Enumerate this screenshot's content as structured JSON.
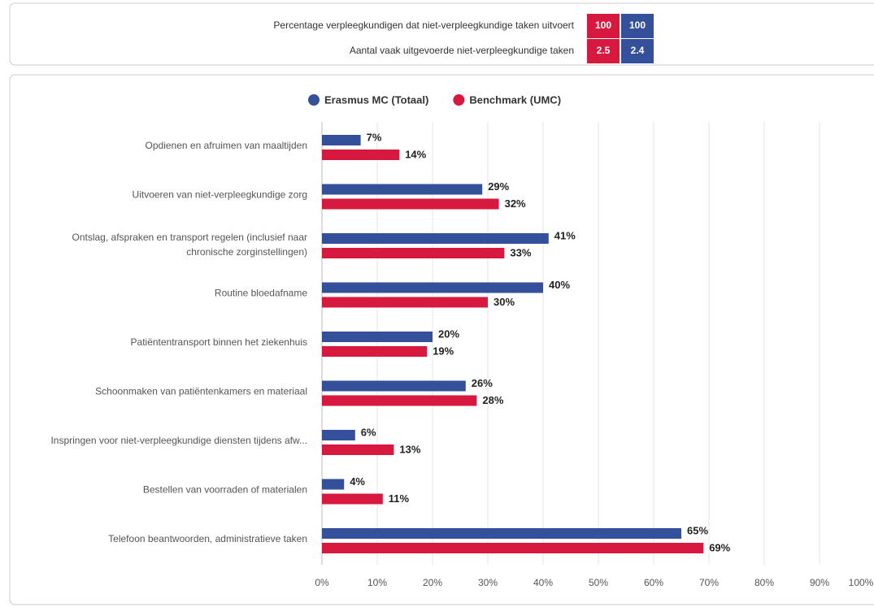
{
  "summary": {
    "rows": [
      {
        "label": "Percentage verpleegkundigen dat niet-verpleegkundige taken uitvoert",
        "values": [
          100,
          100
        ]
      },
      {
        "label": "Aantal vaak uitgevoerde niet-verpleegkundige taken",
        "values": [
          2.5,
          2.4
        ]
      }
    ],
    "colors": [
      "#d7193f",
      "#35509a"
    ]
  },
  "chart_data": {
    "type": "bar",
    "orientation": "horizontal",
    "categories": [
      "Opdienen en afruimen van maaltijden",
      "Uitvoeren van niet-verpleegkundige zorg",
      [
        "Ontslag, afspraken en transport regelen (inclusief naar",
        "chronische zorginstellingen)"
      ],
      "Routine bloedafname",
      "Patiëntentransport binnen het ziekenhuis",
      "Schoonmaken van patiëntenkamers en materiaal",
      "Inspringen voor niet-verpleegkundige diensten tijdens afw...",
      "Bestellen van voorraden of materialen",
      "Telefoon beantwoorden, administratieve taken"
    ],
    "series": [
      {
        "name": "Erasmus MC (Totaal)",
        "color": "#35509a",
        "values": [
          7,
          29,
          41,
          40,
          20,
          26,
          6,
          4,
          65
        ],
        "value_labels": [
          "7%",
          "29%",
          "41%",
          "40%",
          "20%",
          "26%",
          "6%",
          "4%",
          "65%"
        ]
      },
      {
        "name": "Benchmark (UMC)",
        "color": "#d7193f",
        "values": [
          14,
          32,
          33,
          30,
          19,
          28,
          13,
          11,
          69
        ],
        "value_labels": [
          "14%",
          "32%",
          "33%",
          "30%",
          "19%",
          "28%",
          "13%",
          "11%",
          "69%"
        ]
      }
    ],
    "xlim": [
      0,
      100
    ],
    "xticks": [
      {
        "value": 0,
        "label": "0%"
      },
      {
        "value": 10,
        "label": "10%"
      },
      {
        "value": 20,
        "label": "20%"
      },
      {
        "value": 30,
        "label": "30%"
      },
      {
        "value": 40,
        "label": "40%"
      },
      {
        "value": 50,
        "label": "50%"
      },
      {
        "value": 60,
        "label": "60%"
      },
      {
        "value": 70,
        "label": "70%"
      },
      {
        "value": 80,
        "label": "80%"
      },
      {
        "value": 90,
        "label": "90%"
      },
      {
        "value": 100,
        "label": "100%"
      }
    ],
    "grid": true,
    "legend": "top"
  }
}
